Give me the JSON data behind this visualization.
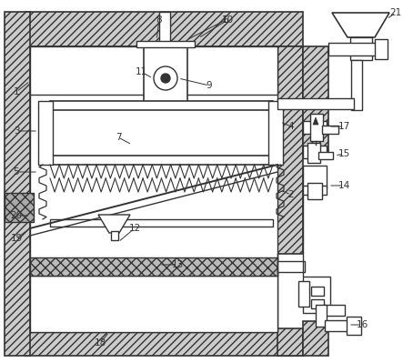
{
  "bg_color": "#ffffff",
  "line_color": "#333333",
  "figsize": [
    4.43,
    3.99
  ],
  "dpi": 100
}
